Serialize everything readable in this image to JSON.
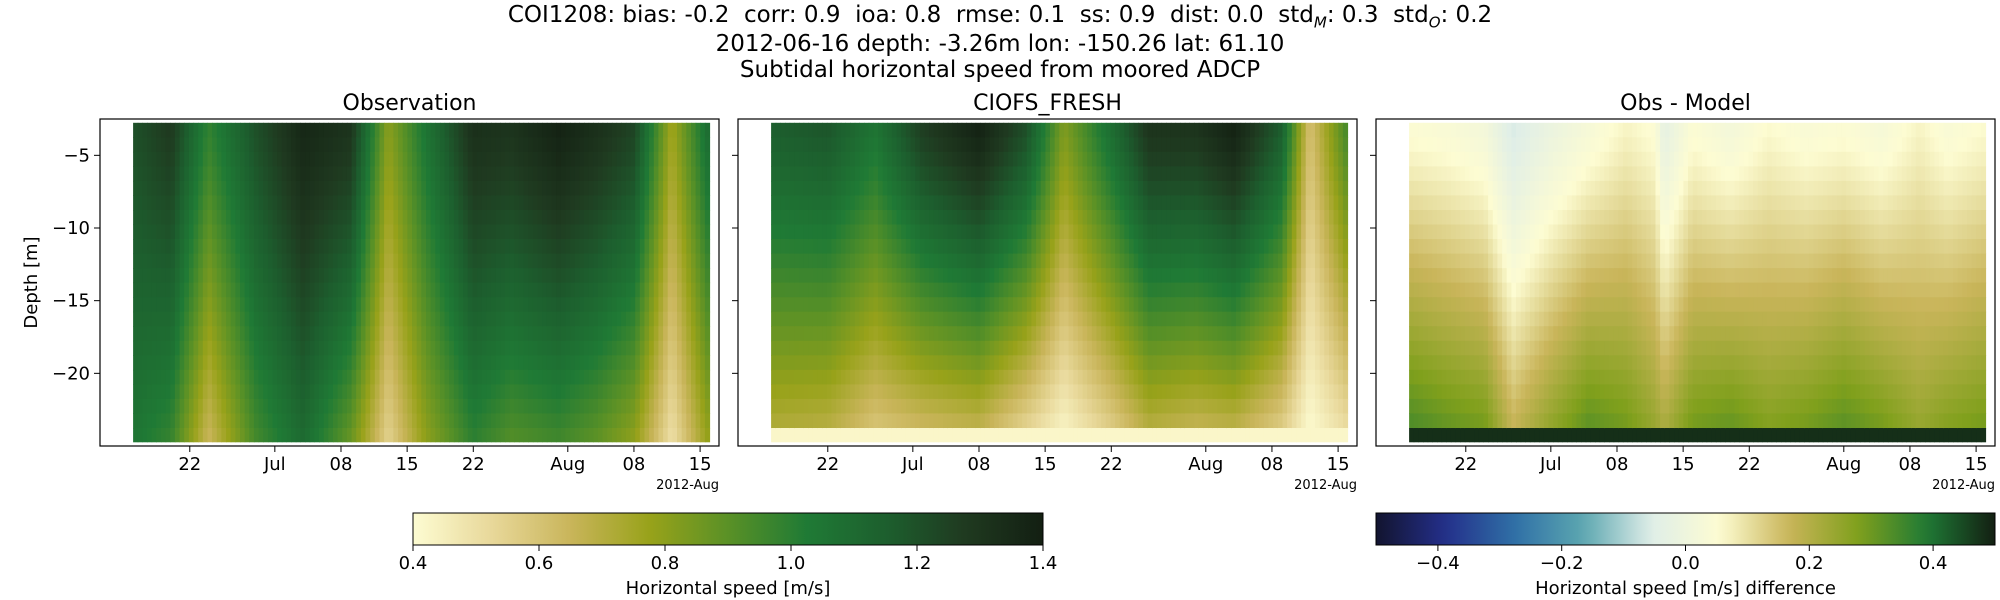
{
  "header": {
    "stats_line": "COI1208: bias: -0.2  corr: 0.9  ioa: 0.8  rmse: 0.1  ss: 0.9  dist: 0.0  std",
    "std_m_sub": "M",
    "std_m_val": ": 0.3  std",
    "std_o_sub": "O",
    "std_o_val": ": 0.2",
    "info_line": "2012-06-16 depth: -3.26m lon: -150.26 lat: 61.10",
    "subtitle": "Subtidal horizontal speed from moored ADCP"
  },
  "chart_data": [
    {
      "type": "heatmap",
      "title": "Observation",
      "ylabel": "Depth [m]",
      "xlabel": "",
      "x_ticks": [
        "22",
        "Jul",
        "08",
        "15",
        "22",
        "Aug",
        "08",
        "15"
      ],
      "x_offset_label": "2012-Aug",
      "y_ticks": [
        -5,
        -10,
        -15,
        -20
      ],
      "ylim": [
        -25,
        -2.5
      ],
      "x_range": [
        "2012-06-16",
        "2012-08-16"
      ],
      "colormap": "speed",
      "vmin": 0.4,
      "vmax": 1.4,
      "time_nodes": [
        "2012-06-16",
        "2012-06-20",
        "2012-06-24",
        "2012-06-29",
        "2012-07-04",
        "2012-07-09",
        "2012-07-13",
        "2012-07-17",
        "2012-07-22",
        "2012-07-26",
        "2012-07-31",
        "2012-08-04",
        "2012-08-08",
        "2012-08-12",
        "2012-08-16"
      ],
      "surface_speed": [
        1.2,
        1.28,
        0.98,
        1.2,
        1.36,
        1.3,
        0.8,
        1.05,
        1.32,
        1.3,
        1.38,
        1.32,
        1.24,
        0.75,
        1.1
      ],
      "bottom_speed": [
        1.05,
        0.98,
        0.65,
        0.95,
        1.1,
        0.88,
        0.55,
        0.8,
        1.0,
        0.92,
        0.96,
        0.9,
        0.8,
        0.5,
        0.8
      ]
    },
    {
      "type": "heatmap",
      "title": "CIOFS_FRESH",
      "xlabel": "",
      "x_ticks": [
        "22",
        "Jul",
        "08",
        "15",
        "22",
        "Aug",
        "08",
        "15"
      ],
      "x_offset_label": "2012-Aug",
      "y_ticks": [
        -5,
        -10,
        -15,
        -20
      ],
      "ylim": [
        -25,
        -2.5
      ],
      "x_range": [
        "2012-06-16",
        "2012-08-16"
      ],
      "colormap": "speed",
      "vmin": 0.4,
      "vmax": 1.4,
      "time_nodes": [
        "2012-06-16",
        "2012-06-22",
        "2012-06-27",
        "2012-07-02",
        "2012-07-08",
        "2012-07-13",
        "2012-07-17",
        "2012-07-22",
        "2012-07-26",
        "2012-07-31",
        "2012-08-04",
        "2012-08-09",
        "2012-08-12",
        "2012-08-16"
      ],
      "surface_speed": [
        1.15,
        1.18,
        1.05,
        1.26,
        1.38,
        1.2,
        0.82,
        1.08,
        1.3,
        1.3,
        1.38,
        1.15,
        0.6,
        0.95
      ],
      "bottom_speed": [
        0.7,
        0.68,
        0.58,
        0.62,
        0.65,
        0.52,
        0.42,
        0.55,
        0.68,
        0.64,
        0.66,
        0.55,
        0.4,
        0.5
      ],
      "bottom_layer_speed": 0.42
    },
    {
      "type": "heatmap",
      "title": "Obs - Model",
      "xlabel": "",
      "x_ticks": [
        "22",
        "Jul",
        "08",
        "15",
        "22",
        "Aug",
        "08",
        "15"
      ],
      "x_offset_label": "2012-Aug",
      "y_ticks": [
        -5,
        -10,
        -15,
        -20
      ],
      "ylim": [
        -25,
        -2.5
      ],
      "x_range": [
        "2012-06-16",
        "2012-08-16"
      ],
      "colormap": "difference",
      "vmin": -0.5,
      "vmax": 0.5,
      "time_nodes": [
        "2012-06-16",
        "2012-06-20",
        "2012-06-24",
        "2012-06-27",
        "2012-07-01",
        "2012-07-05",
        "2012-07-09",
        "2012-07-12",
        "2012-07-13",
        "2012-07-16",
        "2012-07-20",
        "2012-07-24",
        "2012-07-28",
        "2012-08-01",
        "2012-08-05",
        "2012-08-09",
        "2012-08-12",
        "2012-08-16"
      ],
      "surface_diff": [
        0.05,
        0.04,
        0.02,
        -0.06,
        -0.01,
        0.03,
        0.07,
        0.05,
        -0.03,
        0.05,
        0.02,
        0.06,
        0.04,
        0.05,
        0.03,
        0.07,
        0.04,
        0.06
      ],
      "bottom_diff": [
        0.35,
        0.32,
        0.3,
        0.18,
        0.26,
        0.33,
        0.3,
        0.25,
        0.22,
        0.3,
        0.32,
        0.28,
        0.3,
        0.33,
        0.3,
        0.25,
        0.28,
        0.3
      ],
      "bottom_layer_diff": 0.48
    }
  ],
  "colorbars": [
    {
      "label": "Horizontal speed [m/s]",
      "colormap": "speed",
      "min": 0.4,
      "max": 1.4,
      "ticks": [
        "0.4",
        "0.6",
        "0.8",
        "1.0",
        "1.2",
        "1.4"
      ]
    },
    {
      "label": "Horizontal speed [m/s] difference",
      "colormap": "difference",
      "min": -0.5,
      "max": 0.5,
      "ticks": [
        "−0.4",
        "−0.2",
        "0.0",
        "0.2",
        "0.4"
      ]
    }
  ],
  "colors": {
    "speed_stops": [
      "#fdfcd2",
      "#e8d89a",
      "#c9b55a",
      "#98a21a",
      "#5a9126",
      "#1f7a35",
      "#1d5f2e",
      "#1f3a20",
      "#131f12"
    ],
    "difference_stops": [
      "#12142f",
      "#242f8a",
      "#2f6fa6",
      "#5ba6b0",
      "#dfeee8",
      "#fdfcd2",
      "#c9b55a",
      "#80a01c",
      "#1f7a35",
      "#131f12"
    ]
  }
}
